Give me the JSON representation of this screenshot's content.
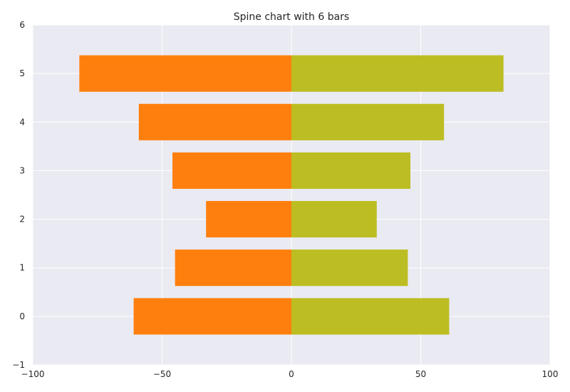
{
  "chart_data": {
    "type": "bar",
    "orientation": "horizontal",
    "title": "Spine chart with 6 bars",
    "xlabel": "",
    "ylabel": "",
    "categories": [
      0,
      1,
      2,
      3,
      4,
      5
    ],
    "series": [
      {
        "values": [
          -61,
          -45,
          -33,
          -46,
          -59,
          -82
        ],
        "color": "#ff7f0e"
      },
      {
        "values": [
          61,
          45,
          33,
          46,
          59,
          82
        ],
        "color": "#bcbd22"
      }
    ],
    "xlim": [
      -100,
      100
    ],
    "ylim": [
      -1,
      6
    ],
    "xticks": [
      "−100",
      "−50",
      "0",
      "50",
      "100"
    ],
    "yticks": [
      "−1",
      "0",
      "1",
      "2",
      "3",
      "4",
      "5",
      "6"
    ],
    "grid": true,
    "background": "#eaeaf2",
    "legend": "none"
  }
}
